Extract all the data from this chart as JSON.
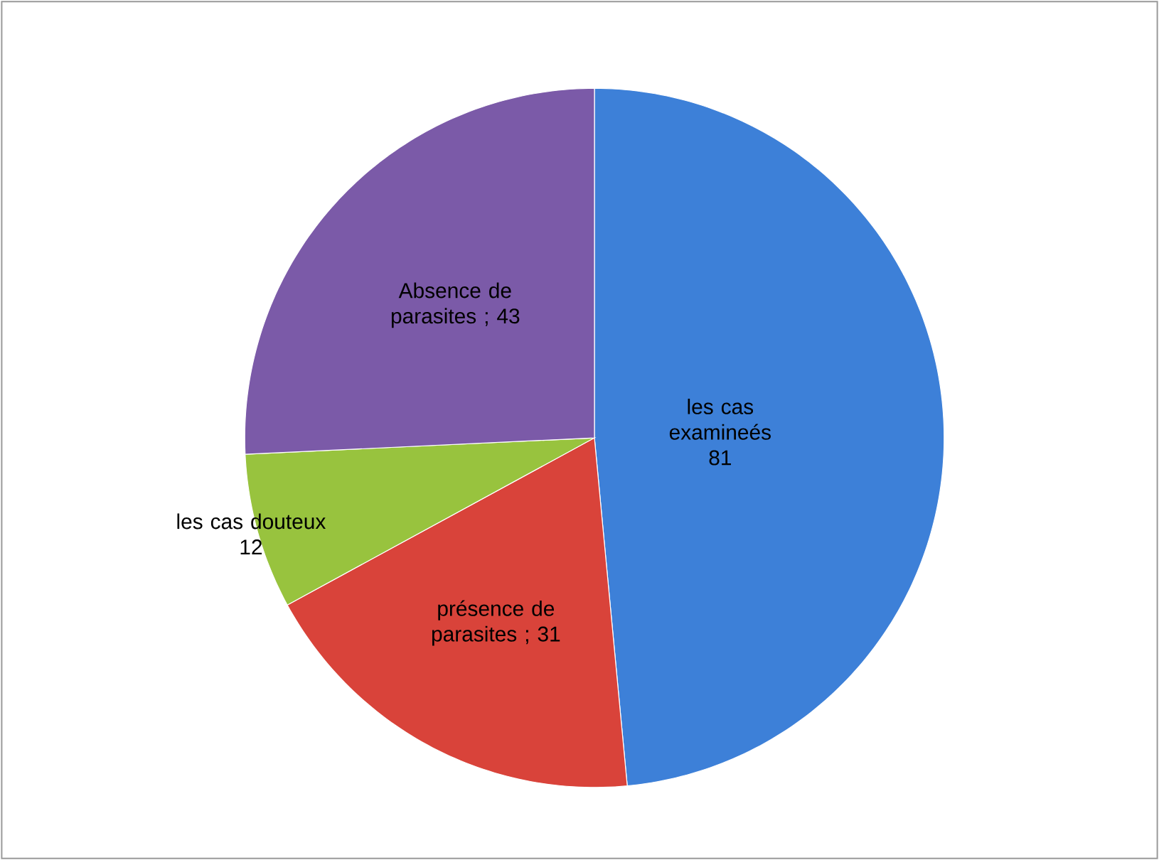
{
  "chart_data": {
    "type": "pie",
    "categories": [
      "les cas examineés",
      "présence de parasites",
      "les cas douteux",
      "Absence de parasites"
    ],
    "values": [
      81,
      31,
      12,
      43
    ],
    "colors": [
      "#3d80d8",
      "#d9433a",
      "#98c33e",
      "#7b5aa8"
    ],
    "value_labels": [
      "81",
      "; 31",
      "12",
      "; 43"
    ]
  }
}
